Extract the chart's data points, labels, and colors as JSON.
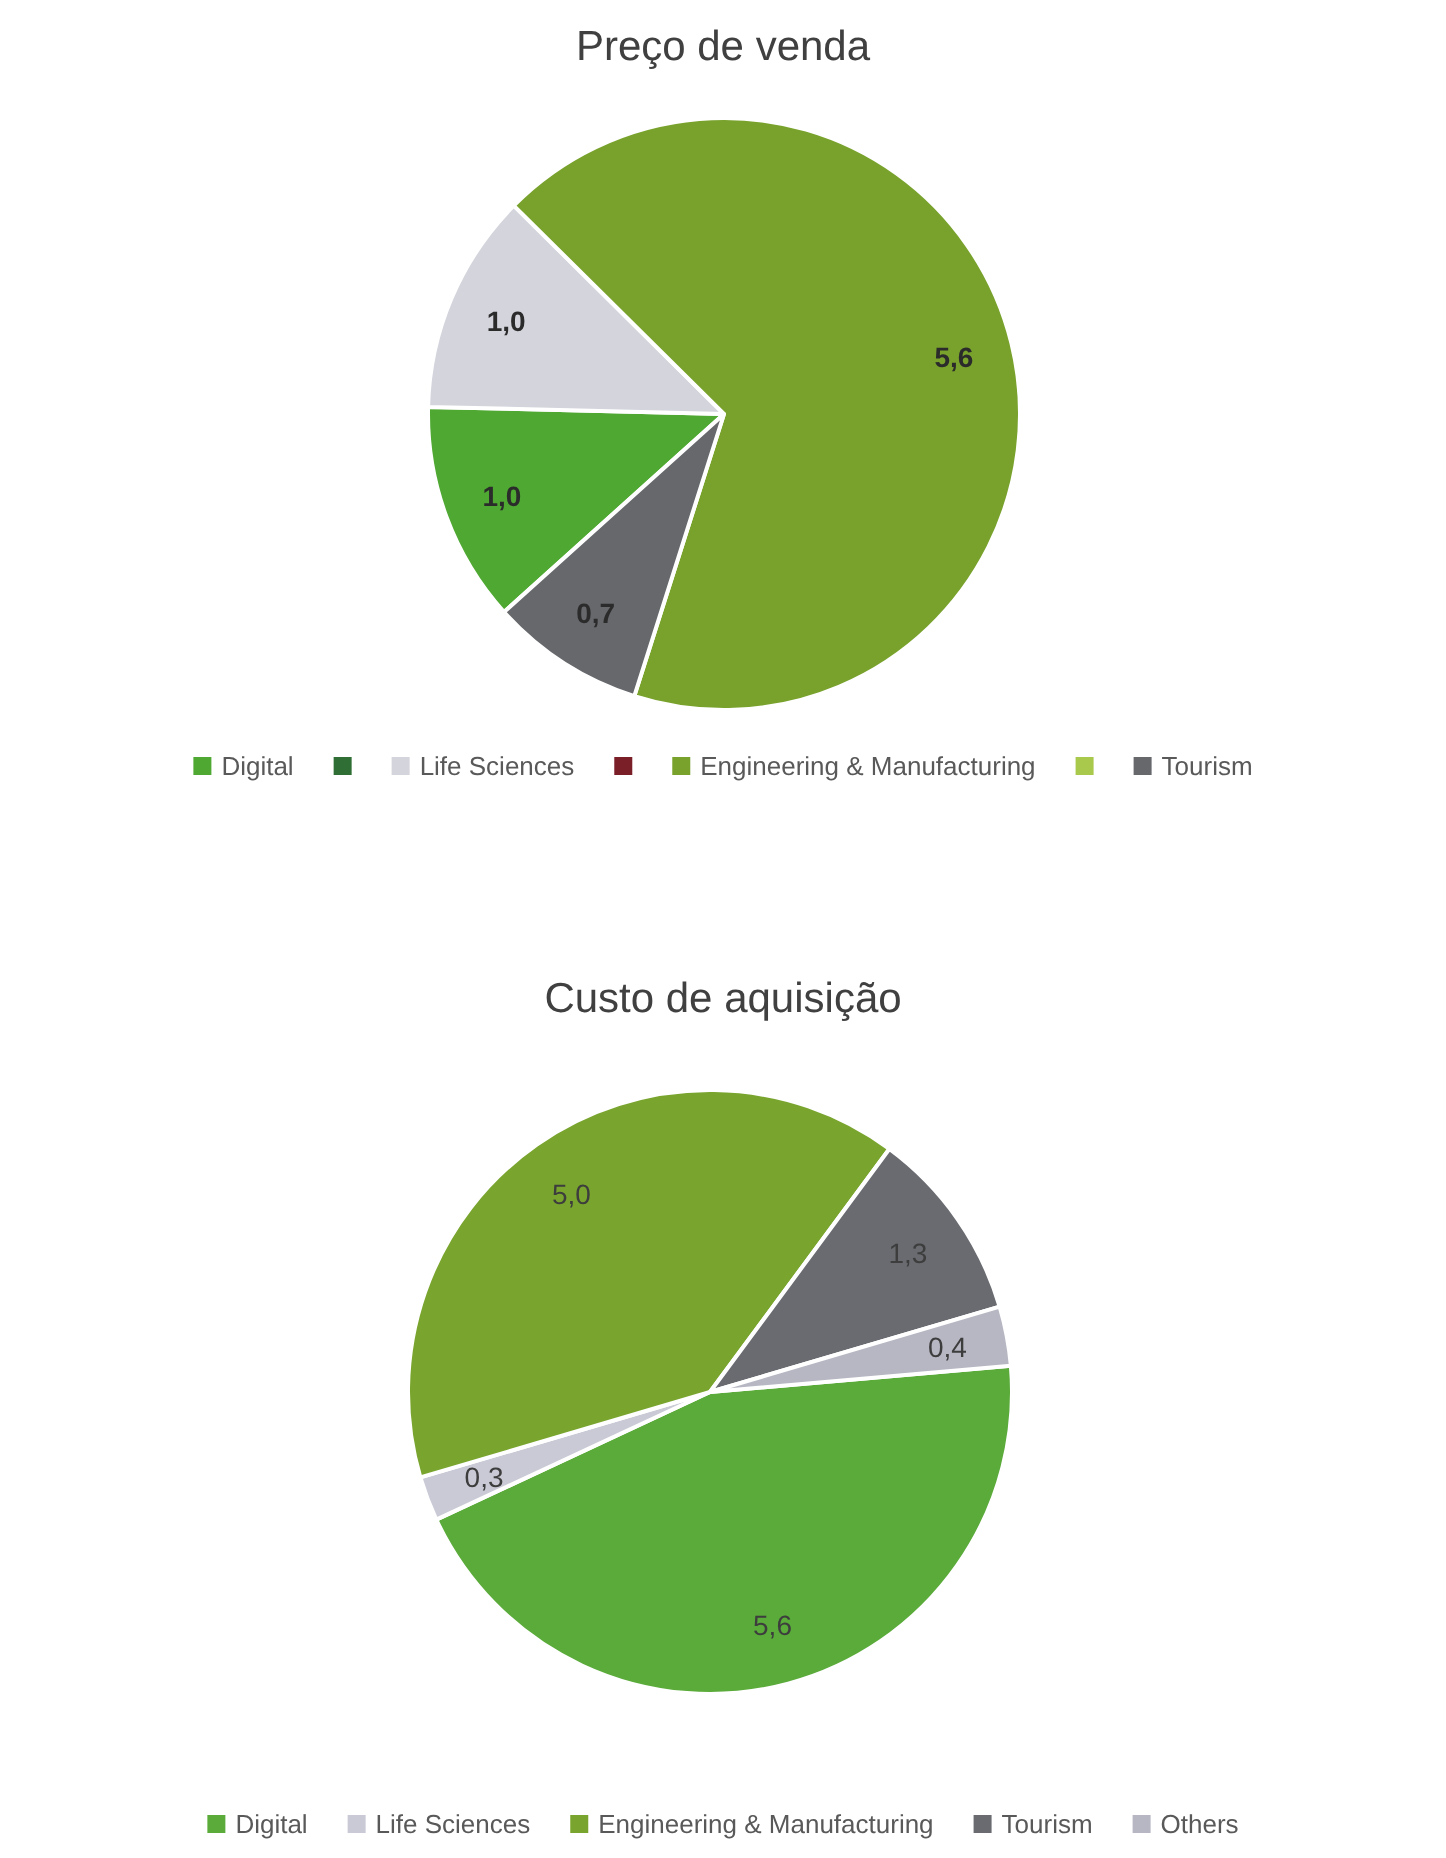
{
  "chart_data": [
    {
      "type": "pie",
      "title": "Preço de venda",
      "categories": [
        "Digital",
        null,
        "Life Sciences",
        null,
        "Engineering & Manufacturing",
        null,
        "Tourism"
      ],
      "values": [
        1.0,
        0,
        1.0,
        0,
        5.6,
        0,
        0.7
      ],
      "colors": [
        "#4fa832",
        "#2f6e34",
        "#d3d4dc",
        "#7a1e28",
        "#78a22c",
        "#a9c94c",
        "#66686c"
      ],
      "value_labels": [
        "1,0",
        null,
        "1,0",
        null,
        "5,6",
        null,
        "0,7"
      ],
      "legend": "bottom"
    },
    {
      "type": "pie",
      "title": "Custo de aquisição",
      "categories": [
        "Digital",
        "Life Sciences",
        "Engineering & Manufacturing",
        "Tourism",
        "Others"
      ],
      "values": [
        5.6,
        0.3,
        5.0,
        1.3,
        0.4
      ],
      "colors": [
        "#5aab3a",
        "#c9cad6",
        "#79a52e",
        "#696b70",
        "#b6b7c3"
      ],
      "value_labels": [
        "5,6",
        "0,3",
        "5,0",
        "1,3",
        "0,4"
      ],
      "legend": "bottom"
    }
  ]
}
